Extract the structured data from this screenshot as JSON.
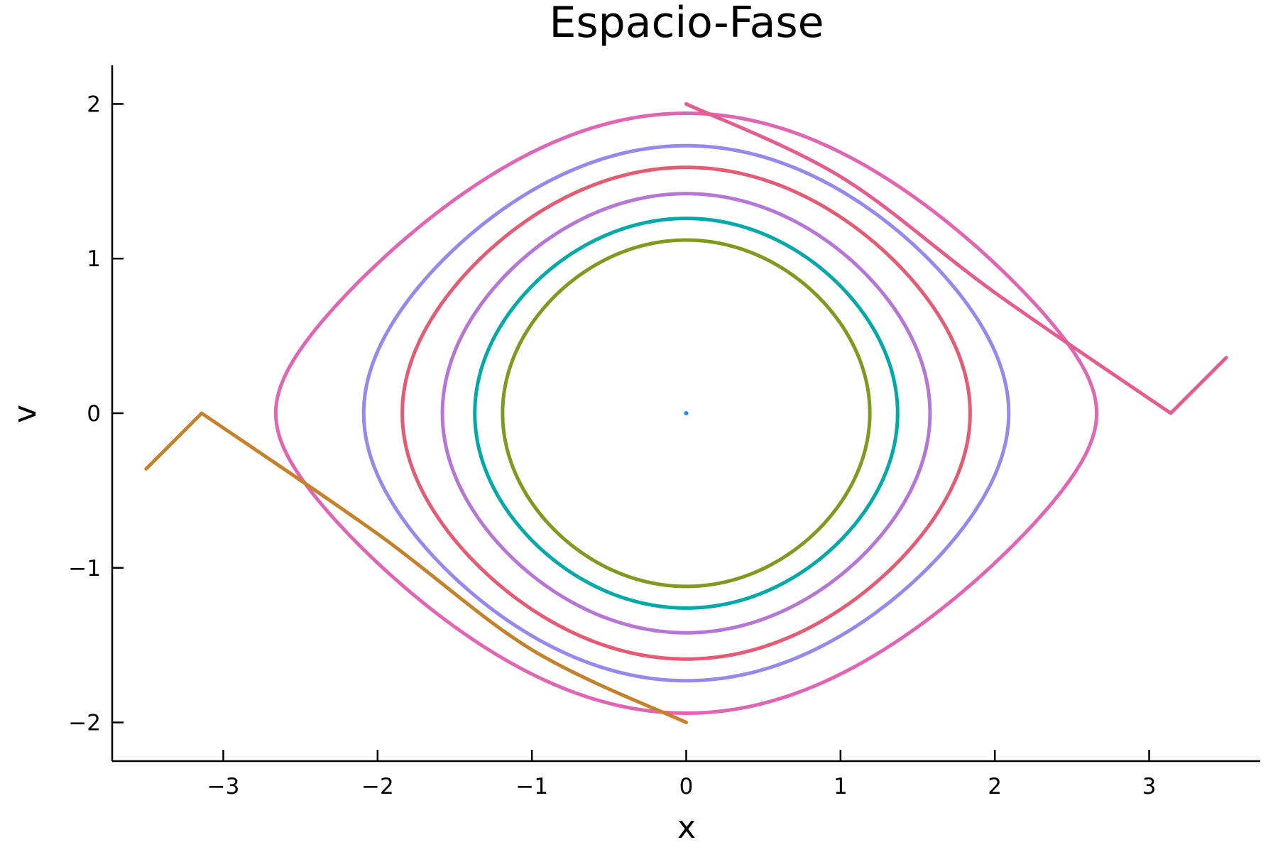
{
  "chart_data": {
    "type": "line",
    "title": "Espacio-Fase",
    "xlabel": "x",
    "ylabel": "v",
    "xlim": [
      -3.72,
      3.72
    ],
    "ylim": [
      -2.25,
      2.25
    ],
    "xticks": [
      -3,
      -2,
      -1,
      0,
      1,
      2,
      3
    ],
    "yticks": [
      -2,
      -1,
      0,
      1,
      2
    ],
    "grid": false,
    "legend": "none",
    "series": [
      {
        "kind": "point",
        "color": "#1f8ff0",
        "x": [
          0
        ],
        "y": [
          0
        ]
      },
      {
        "kind": "orbit",
        "color": "#7f9a1e",
        "amplitude": 1.19,
        "v_max": 1.12
      },
      {
        "kind": "orbit",
        "color": "#00a9a9",
        "amplitude": 1.37,
        "v_max": 1.26
      },
      {
        "kind": "orbit",
        "color": "#b576d6",
        "amplitude": 1.58,
        "v_max": 1.42
      },
      {
        "kind": "orbit",
        "color": "#e45c73",
        "amplitude": 1.84,
        "v_max": 1.59
      },
      {
        "kind": "orbit",
        "color": "#9688ec",
        "amplitude": 2.09,
        "v_max": 1.73
      },
      {
        "kind": "orbit",
        "color": "#e066b3",
        "amplitude": 2.66,
        "v_max": 1.94
      },
      {
        "kind": "segments",
        "color": "#e35d8e",
        "x": [
          0,
          1.0,
          2.0,
          3.14,
          3.5
        ],
        "y": [
          2.0,
          1.53,
          0.78,
          0.0,
          0.36
        ]
      },
      {
        "kind": "segments",
        "color": "#c4822a",
        "x": [
          0,
          -1.0,
          -2.0,
          -3.14,
          -3.5
        ],
        "y": [
          -2.0,
          -1.53,
          -0.78,
          0.0,
          -0.36
        ]
      }
    ]
  }
}
